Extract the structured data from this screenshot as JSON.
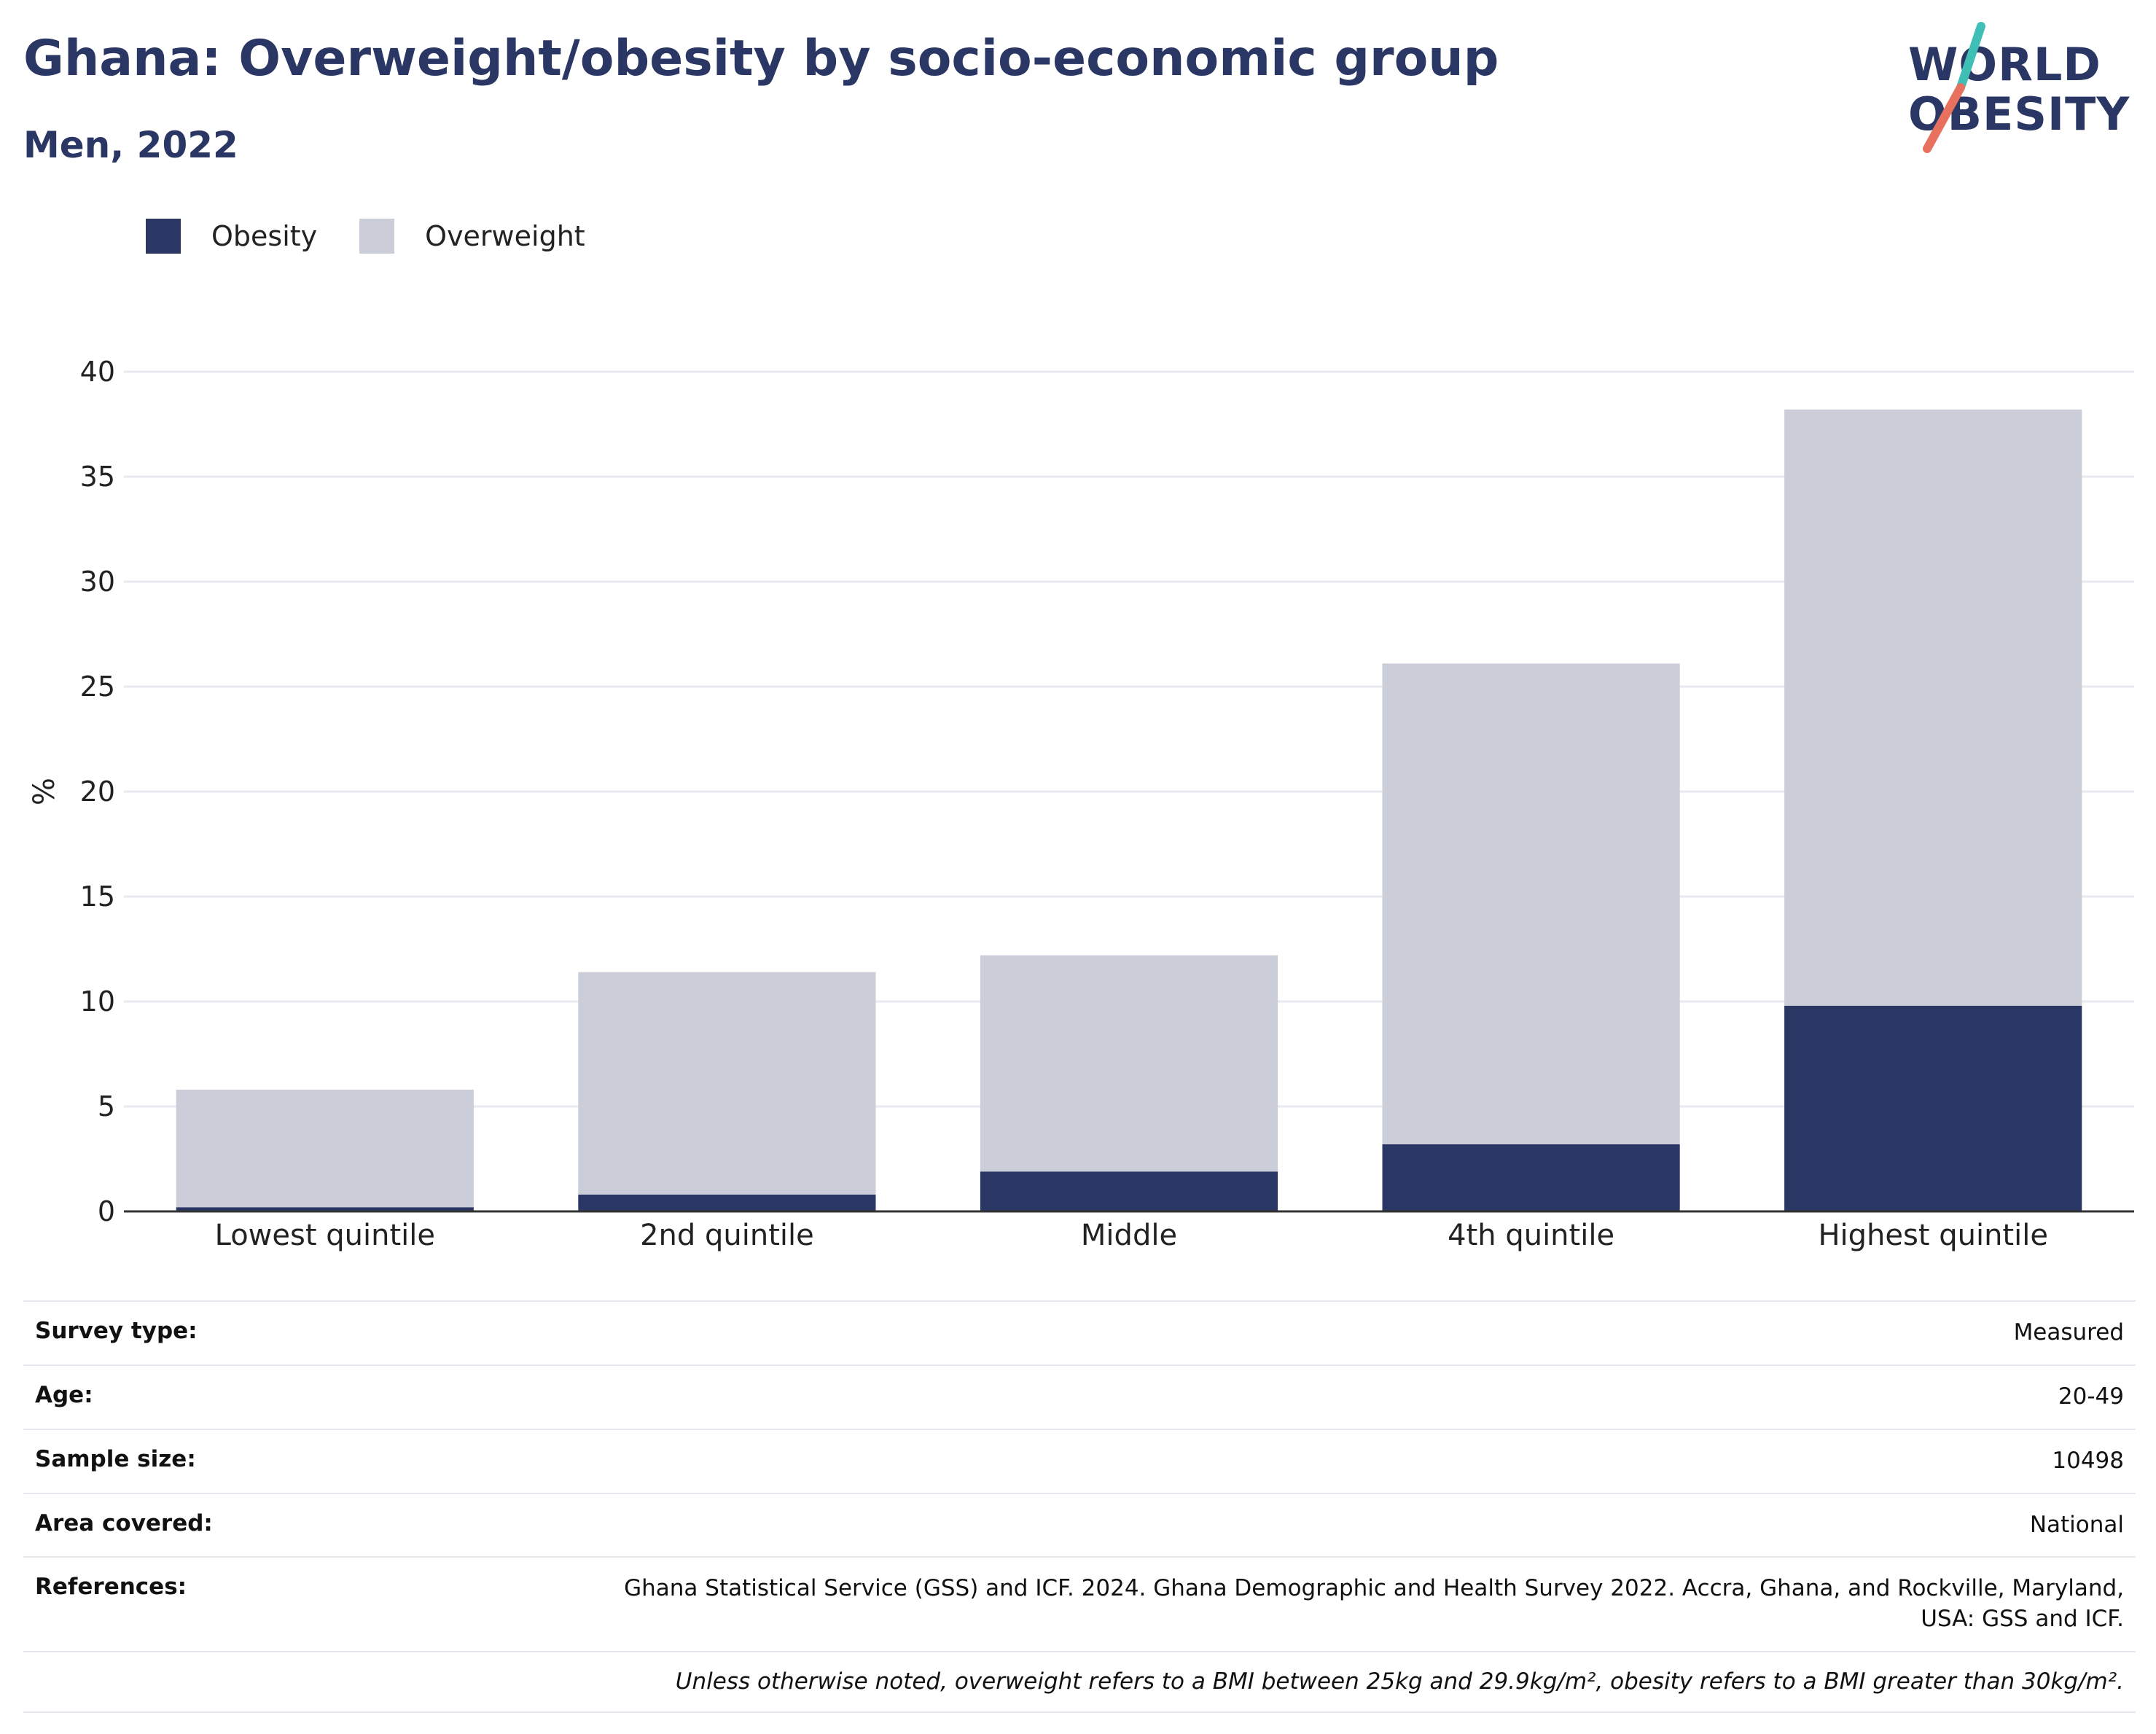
{
  "header": {
    "title": "Ghana: Overweight/obesity by socio-economic group",
    "subtitle": "Men, 2022"
  },
  "logo": {
    "line1": "WORLD",
    "line2": "OBESITY"
  },
  "legend": [
    {
      "label": "Obesity",
      "color": "#2a3663"
    },
    {
      "label": "Overweight",
      "color": "#cbcdd9"
    }
  ],
  "chart_data": {
    "type": "bar",
    "stacked": true,
    "categories": [
      "Lowest quintile",
      "2nd quintile",
      "Middle",
      "4th quintile",
      "Highest quintile"
    ],
    "series": [
      {
        "name": "Obesity",
        "color": "#2a3663",
        "values": [
          0.2,
          0.8,
          1.9,
          3.2,
          9.8
        ]
      },
      {
        "name": "Overweight",
        "color": "#cbcdd9",
        "values": [
          5.6,
          10.6,
          10.3,
          22.9,
          28.4
        ]
      }
    ],
    "ylabel": "%",
    "xlabel": "",
    "ylim": [
      0,
      40
    ],
    "yticks": [
      0,
      5,
      10,
      15,
      20,
      25,
      30,
      35,
      40
    ],
    "grid": true,
    "legend_position": "top-left"
  },
  "info": [
    {
      "key": "Survey type:",
      "value": "Measured"
    },
    {
      "key": "Age:",
      "value": "20-49"
    },
    {
      "key": "Sample size:",
      "value": "10498"
    },
    {
      "key": "Area covered:",
      "value": "National"
    },
    {
      "key": "References:",
      "value": "Ghana Statistical Service (GSS) and ICF. 2024. Ghana Demographic and Health Survey 2022. Accra, Ghana, and Rockville, Maryland, USA: GSS and ICF."
    }
  ],
  "footnote": "Unless otherwise noted, overweight refers to a BMI between 25kg and 29.9kg/m², obesity refers to a BMI greater than 30kg/m²."
}
